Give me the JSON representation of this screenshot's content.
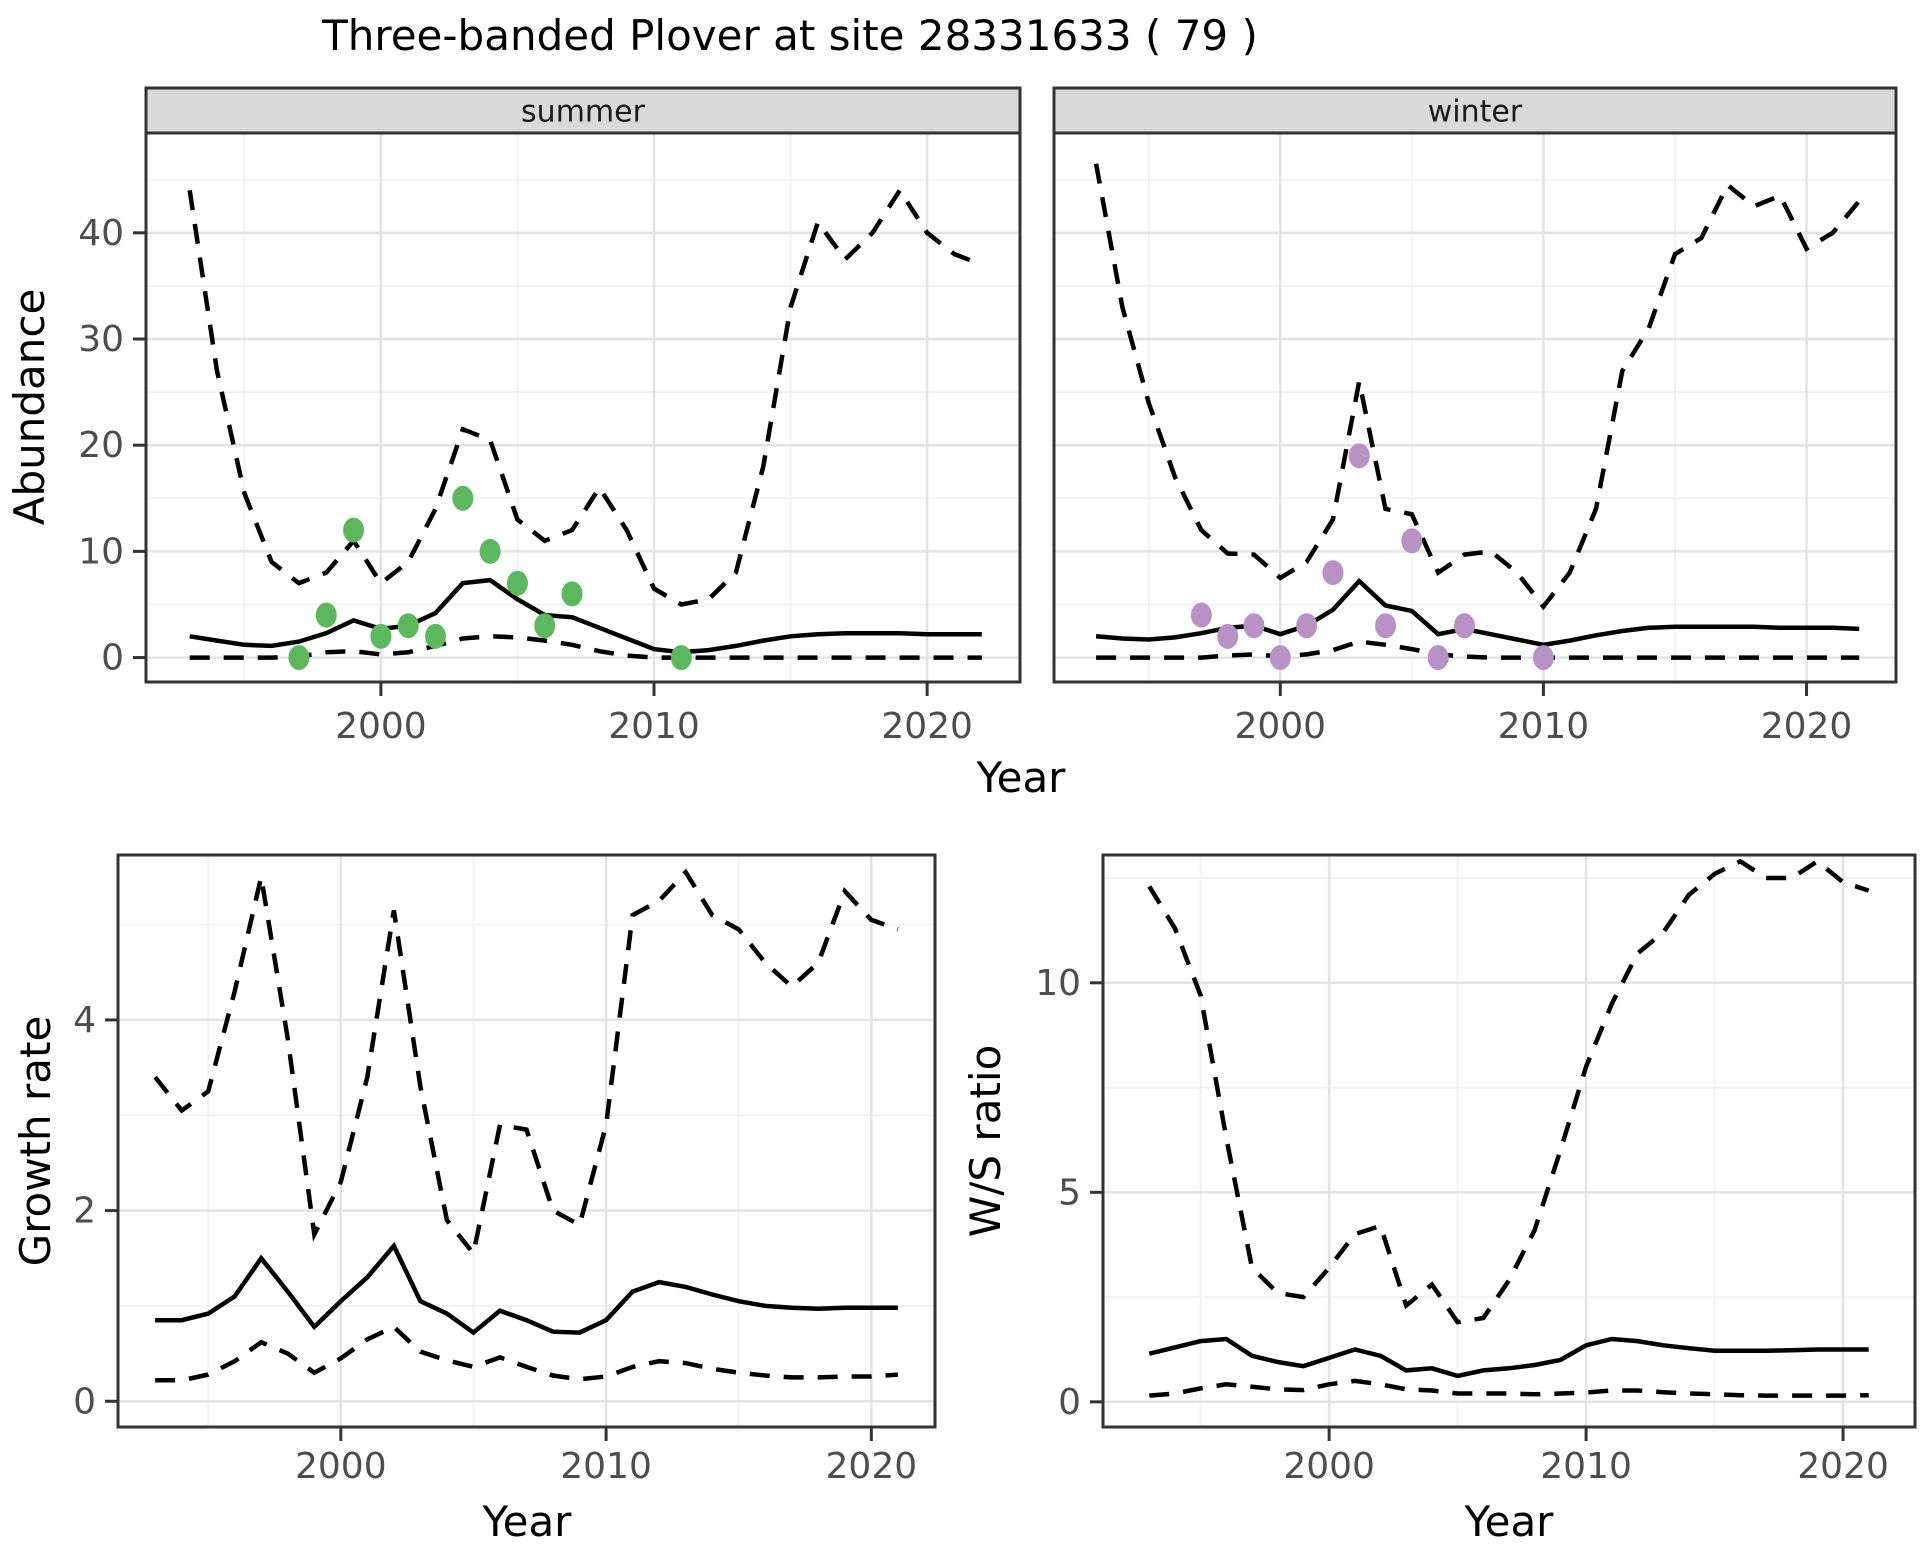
{
  "title": "Three-banded Plover at site 28331633 ( 79 )",
  "colors": {
    "summer_point": "#5CB85C",
    "winter_point": "#B892C5",
    "line": "#000000",
    "grid_major": "#E3E3E3",
    "grid_minor": "#F2F2F2",
    "panel_border": "#333333",
    "strip_bg": "#D9D9D9",
    "tick_label": "#4D4D4D",
    "axis_title": "#000000"
  },
  "chart_data": [
    {
      "id": "abundance-summer",
      "type": "line",
      "facet_label": "summer",
      "ylabel": "Abundance",
      "xlabel": "Year",
      "xlim": [
        1991.4,
        2023.4
      ],
      "ylim": [
        -2.3,
        49.4
      ],
      "x_ticks": [
        2000,
        2010,
        2020
      ],
      "x_minor": [
        1995,
        2005,
        2015
      ],
      "y_ticks": [
        0,
        10,
        20,
        30,
        40
      ],
      "y_minor": [
        5,
        15,
        25,
        35,
        45
      ],
      "years": [
        1993,
        1994,
        1995,
        1996,
        1997,
        1998,
        1999,
        2000,
        2001,
        2002,
        2003,
        2004,
        2005,
        2006,
        2007,
        2008,
        2009,
        2010,
        2011,
        2012,
        2013,
        2014,
        2015,
        2016,
        2017,
        2018,
        2019,
        2020,
        2021,
        2022
      ],
      "series": [
        {
          "name": "upper-ci",
          "style": "dashed",
          "values": [
            44,
            27,
            15.5,
            9,
            7,
            8,
            11,
            7,
            9,
            14,
            21.5,
            20.5,
            13,
            11,
            12,
            16,
            12,
            6.5,
            5,
            5.5,
            8,
            18,
            33,
            41,
            37.5,
            40,
            44,
            40,
            38,
            37
          ]
        },
        {
          "name": "lower-ci",
          "style": "dashed",
          "values": [
            0,
            0,
            0,
            0,
            0.1,
            0.5,
            0.6,
            0.3,
            0.5,
            1.1,
            1.8,
            2,
            1.9,
            1.6,
            1.2,
            0.6,
            0.2,
            0,
            0,
            0,
            0,
            0,
            0,
            0,
            0,
            0,
            0,
            0,
            0,
            0
          ]
        },
        {
          "name": "median",
          "style": "solid",
          "values": [
            2,
            1.6,
            1.2,
            1.1,
            1.5,
            2.3,
            3.5,
            2.7,
            3,
            4.2,
            7,
            7.3,
            5.5,
            4,
            3.8,
            2.8,
            1.8,
            0.8,
            0.5,
            0.7,
            1.1,
            1.6,
            2,
            2.2,
            2.3,
            2.3,
            2.3,
            2.2,
            2.2,
            2.2
          ]
        },
        {
          "name": "observed-counts",
          "style": "points",
          "color_key": "summer_point",
          "x": [
            1997,
            1998,
            1999,
            2000,
            2001,
            2002,
            2003,
            2004,
            2005,
            2006,
            2007,
            2011
          ],
          "y": [
            0,
            4,
            12,
            2,
            3,
            2,
            15,
            10,
            7,
            3,
            6,
            0
          ]
        }
      ]
    },
    {
      "id": "abundance-winter",
      "type": "line",
      "facet_label": "winter",
      "ylabel": null,
      "xlabel": null,
      "xlim": [
        1991.4,
        2023.4
      ],
      "ylim": [
        -2.3,
        49.4
      ],
      "x_ticks": [
        2000,
        2010,
        2020
      ],
      "x_minor": [
        1995,
        2005,
        2015
      ],
      "y_ticks": [
        0,
        10,
        20,
        30,
        40
      ],
      "y_minor": [
        5,
        15,
        25,
        35,
        45
      ],
      "years": [
        1993,
        1994,
        1995,
        1996,
        1997,
        1998,
        1999,
        2000,
        2001,
        2002,
        2003,
        2004,
        2005,
        2006,
        2007,
        2008,
        2009,
        2010,
        2011,
        2012,
        2013,
        2014,
        2015,
        2016,
        2017,
        2018,
        2019,
        2020,
        2021,
        2022
      ],
      "series": [
        {
          "name": "upper-ci",
          "style": "dashed",
          "values": [
            46.5,
            33,
            24,
            17,
            12,
            9.8,
            9.7,
            7.5,
            9,
            13,
            26,
            14,
            13.5,
            8,
            9.7,
            10,
            8,
            4.8,
            8,
            14,
            27,
            31,
            38,
            39.5,
            44.5,
            42.5,
            43.5,
            38.5,
            40,
            43
          ]
        },
        {
          "name": "lower-ci",
          "style": "dashed",
          "values": [
            0,
            0,
            0,
            0,
            0,
            0.2,
            0.3,
            0.1,
            0.3,
            0.7,
            1.5,
            1.2,
            0.8,
            0.3,
            0.1,
            0,
            0,
            0,
            0,
            0,
            0,
            0,
            0,
            0,
            0,
            0,
            0,
            0,
            0,
            0
          ]
        },
        {
          "name": "median",
          "style": "solid",
          "values": [
            2,
            1.8,
            1.7,
            1.9,
            2.3,
            2.8,
            3,
            2.2,
            3,
            4.5,
            7.2,
            4.9,
            4.4,
            2.2,
            2.7,
            2.2,
            1.7,
            1.2,
            1.6,
            2.1,
            2.5,
            2.8,
            2.9,
            2.9,
            2.9,
            2.9,
            2.8,
            2.8,
            2.8,
            2.7
          ]
        },
        {
          "name": "observed-counts",
          "style": "points",
          "color_key": "winter_point",
          "x": [
            1997,
            1998,
            1999,
            2000,
            2001,
            2002,
            2003,
            2004,
            2005,
            2006,
            2007,
            2010
          ],
          "y": [
            4,
            2,
            3,
            0,
            3,
            8,
            19,
            3,
            11,
            0,
            3,
            0
          ]
        }
      ]
    },
    {
      "id": "growth-rate",
      "type": "line",
      "facet_label": null,
      "ylabel": "Growth rate",
      "xlabel": "Year",
      "xlim": [
        1991.6,
        2022.4
      ],
      "ylim": [
        -0.27,
        5.73
      ],
      "x_ticks": [
        2000,
        2010,
        2020
      ],
      "x_minor": [
        1995,
        2005,
        2015
      ],
      "y_ticks": [
        0,
        2,
        4
      ],
      "y_minor": [
        1,
        3,
        5
      ],
      "years": [
        1993,
        1994,
        1995,
        1996,
        1997,
        1998,
        1999,
        2000,
        2001,
        2002,
        2003,
        2004,
        2005,
        2006,
        2007,
        2008,
        2009,
        2010,
        2011,
        2012,
        2013,
        2014,
        2015,
        2016,
        2017,
        2018,
        2019,
        2020,
        2021
      ],
      "series": [
        {
          "name": "upper-ci",
          "style": "dashed",
          "values": [
            3.4,
            3.05,
            3.25,
            4.3,
            5.5,
            3.8,
            1.75,
            2.3,
            3.4,
            5.15,
            3.3,
            1.9,
            1.55,
            2.9,
            2.85,
            2,
            1.85,
            2.9,
            5.1,
            5.25,
            5.55,
            5.1,
            4.95,
            4.6,
            4.35,
            4.6,
            5.35,
            5.05,
            4.95
          ]
        },
        {
          "name": "lower-ci",
          "style": "dashed",
          "values": [
            0.22,
            0.22,
            0.28,
            0.42,
            0.62,
            0.5,
            0.3,
            0.45,
            0.65,
            0.78,
            0.52,
            0.43,
            0.36,
            0.46,
            0.36,
            0.27,
            0.23,
            0.26,
            0.36,
            0.42,
            0.4,
            0.34,
            0.3,
            0.27,
            0.25,
            0.25,
            0.26,
            0.26,
            0.28
          ]
        },
        {
          "name": "median",
          "style": "solid",
          "values": [
            0.85,
            0.85,
            0.92,
            1.1,
            1.5,
            1.15,
            0.78,
            1.05,
            1.3,
            1.63,
            1.05,
            0.92,
            0.72,
            0.95,
            0.85,
            0.73,
            0.72,
            0.85,
            1.15,
            1.25,
            1.2,
            1.12,
            1.05,
            1,
            0.98,
            0.97,
            0.98,
            0.98,
            0.98
          ]
        }
      ]
    },
    {
      "id": "ws-ratio",
      "type": "line",
      "facet_label": null,
      "ylabel": "W/S ratio",
      "xlabel": "Year",
      "xlim": [
        1991.2,
        2022.8
      ],
      "ylim": [
        -0.6,
        13.05
      ],
      "x_ticks": [
        2000,
        2010,
        2020
      ],
      "x_minor": [
        1995,
        2005,
        2015
      ],
      "y_ticks": [
        0,
        5,
        10
      ],
      "y_minor": [
        2.5,
        7.5,
        12.5
      ],
      "years": [
        1993,
        1994,
        1995,
        1996,
        1997,
        1998,
        1999,
        2000,
        2001,
        2002,
        2003,
        2004,
        2005,
        2006,
        2007,
        2008,
        2009,
        2010,
        2011,
        2012,
        2013,
        2014,
        2015,
        2016,
        2017,
        2018,
        2019,
        2020,
        2021
      ],
      "series": [
        {
          "name": "upper-ci",
          "style": "dashed",
          "values": [
            12.3,
            11.3,
            9.7,
            6.3,
            3.2,
            2.6,
            2.5,
            3.2,
            4,
            4.2,
            2.3,
            2.8,
            1.9,
            2,
            2.9,
            4.1,
            6,
            8,
            9.5,
            10.7,
            11.2,
            12.1,
            12.6,
            12.9,
            12.5,
            12.5,
            12.9,
            12.4,
            12.2
          ]
        },
        {
          "name": "lower-ci",
          "style": "dashed",
          "values": [
            0.15,
            0.2,
            0.32,
            0.42,
            0.36,
            0.3,
            0.28,
            0.42,
            0.5,
            0.42,
            0.3,
            0.27,
            0.2,
            0.2,
            0.2,
            0.18,
            0.2,
            0.22,
            0.27,
            0.27,
            0.23,
            0.2,
            0.18,
            0.16,
            0.15,
            0.15,
            0.15,
            0.15,
            0.16
          ]
        },
        {
          "name": "median",
          "style": "solid",
          "values": [
            1.15,
            1.3,
            1.45,
            1.5,
            1.1,
            0.95,
            0.85,
            1.05,
            1.25,
            1.1,
            0.75,
            0.8,
            0.62,
            0.75,
            0.8,
            0.88,
            1,
            1.35,
            1.5,
            1.45,
            1.35,
            1.28,
            1.22,
            1.22,
            1.22,
            1.23,
            1.25,
            1.25,
            1.25
          ]
        }
      ]
    }
  ]
}
